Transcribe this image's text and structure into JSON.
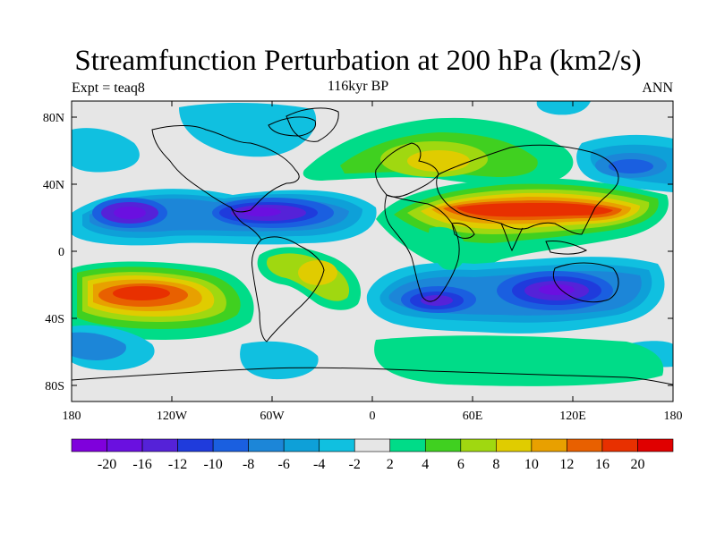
{
  "title": "Streamfunction Perturbation at 200 hPa (km2/s)",
  "subtitle_left": "Expt = teaq8",
  "subtitle_center": "116kyr BP",
  "subtitle_right": "ANN",
  "lat_ticks": [
    "80N",
    "40N",
    "0",
    "40S",
    "80S"
  ],
  "lon_ticks": [
    "180",
    "120W",
    "60W",
    "0",
    "60E",
    "120E",
    "180"
  ],
  "colorbar": {
    "colors": [
      "#7f00dc",
      "#6a10e0",
      "#5522d8",
      "#1f3bdc",
      "#1a5fe0",
      "#1c86d8",
      "#0ea0d8",
      "#10c0e0",
      "#e6e6e6",
      "#00dc88",
      "#40d020",
      "#a0d810",
      "#e0cc00",
      "#e8a000",
      "#e86000",
      "#e83000",
      "#e00000"
    ],
    "labels": [
      "-20",
      "-16",
      "-12",
      "-10",
      "-8",
      "-6",
      "-4",
      "-2",
      "2",
      "4",
      "6",
      "8",
      "10",
      "12",
      "16",
      "20"
    ]
  }
}
